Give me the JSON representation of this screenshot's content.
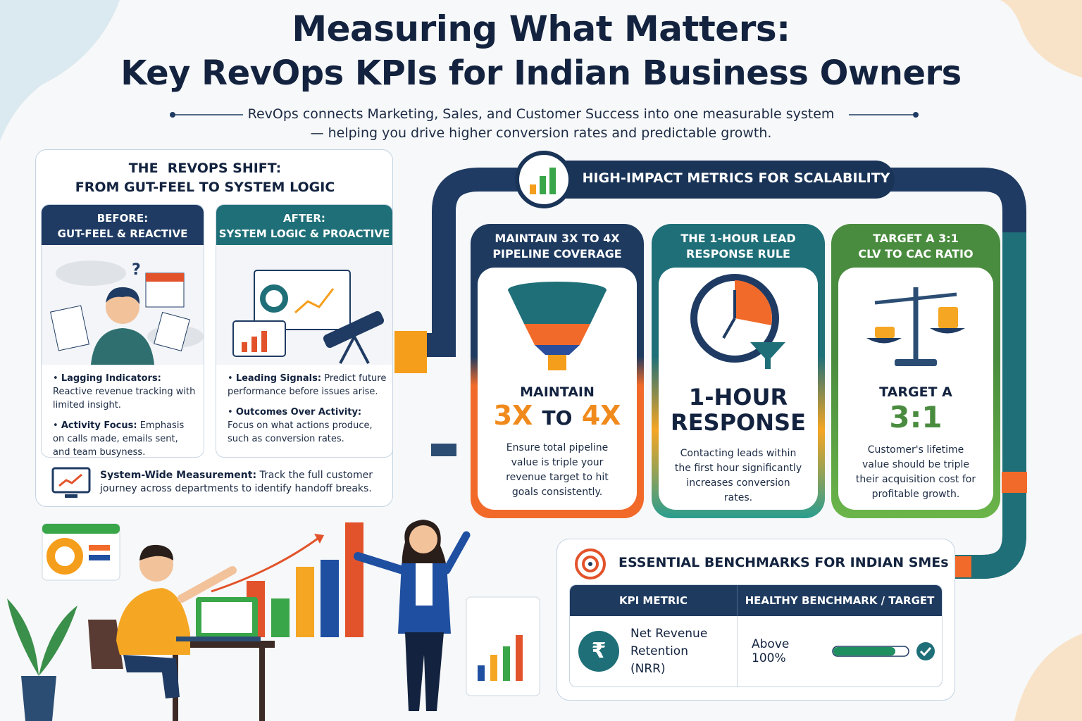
{
  "header": {
    "title_lines": [
      "Measuring What Matters:",
      "Key RevOps KPIs for Indian Business Owners"
    ],
    "subtitle_lines": [
      "RevOps connects Marketing, Sales, and Customer Success into one measurable system",
      "— helping you drive higher conversion rates and predictable growth."
    ]
  },
  "shift": {
    "title_lines": [
      "THE  REVOPS SHIFT:",
      "FROM GUT-FEEL TO SYSTEM LOGIC"
    ],
    "before": {
      "header_lines": [
        "BEFORE:",
        "GUT-FEEL & REACTIVE"
      ],
      "bullets": [
        {
          "label": "Lagging Indicators:",
          "text": "Reactive revenue tracking with limited insight."
        },
        {
          "label": "Activity Focus:",
          "text": "Emphasis on calls made, emails sent, and team busyness."
        }
      ]
    },
    "after": {
      "header_lines": [
        "AFTER:",
        "SYSTEM LOGIC & PROACTIVE"
      ],
      "bullets": [
        {
          "label": "Leading Signals:",
          "text": "Predict future performance before issues arise."
        },
        {
          "label": "Outcomes Over Activity:",
          "text": "Focus on what actions produce, such as conversion rates."
        }
      ]
    },
    "footer": {
      "label": "System-Wide Measurement:",
      "text": "Track the full customer journey across departments to identify handoff breaks."
    }
  },
  "metrics": {
    "title": "HIGH-IMPACT METRICS FOR SCALABILITY",
    "cards": [
      {
        "header_lines": [
          "MAINTAIN 3X TO 4X",
          "PIPELINE COVERAGE"
        ],
        "kicker": "MAINTAIN",
        "big": [
          "3X",
          "TO",
          "4X"
        ],
        "text": "Ensure total pipeline value is triple your revenue target to hit goals consistently."
      },
      {
        "header_lines": [
          "THE 1-HOUR LEAD",
          "RESPONSE RULE"
        ],
        "kicker": "1-HOUR",
        "big": [
          "RESPONSE"
        ],
        "text": "Contacting leads within the first hour significantly increases conversion rates."
      },
      {
        "header_lines": [
          "TARGET A 3:1",
          "CLV TO CAC RATIO"
        ],
        "kicker": "TARGET A",
        "big": [
          "3:1"
        ],
        "text": "Customer's lifetime value should be triple their acquisition cost for profitable growth."
      }
    ]
  },
  "benchmarks": {
    "title": "ESSENTIAL BENCHMARKS FOR INDIAN SMEs",
    "columns": [
      "KPI METRIC",
      "HEALTHY BENCHMARK / TARGET"
    ],
    "rows": [
      {
        "icon": "₹",
        "metric": "Net Revenue Retention (NRR)",
        "target": "Above 100%"
      }
    ]
  }
}
